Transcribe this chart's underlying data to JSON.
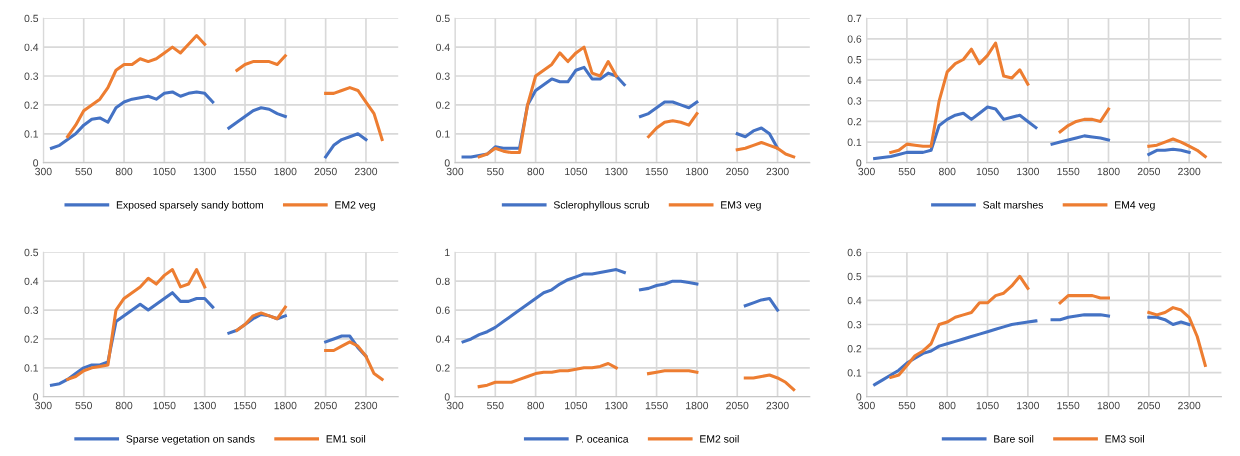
{
  "chart_data": [
    {
      "type": "line",
      "x": [
        350,
        400,
        450,
        500,
        550,
        600,
        650,
        700,
        750,
        800,
        850,
        900,
        950,
        1000,
        1050,
        1100,
        1150,
        1200,
        1250,
        1300,
        1350,
        1400,
        1450,
        1500,
        1550,
        1600,
        1650,
        1700,
        1750,
        1800,
        1850,
        1900,
        1950,
        2000,
        2050,
        2100,
        2150,
        2200,
        2250,
        2300,
        2350,
        2400
      ],
      "xlim": [
        300,
        2500
      ],
      "xticks": [
        300,
        550,
        800,
        1050,
        1300,
        1550,
        1800,
        2050,
        2300
      ],
      "ylim": [
        0,
        0.5
      ],
      "yticks": [
        0,
        0.1,
        0.2,
        0.3,
        0.4,
        0.5
      ],
      "grid": true,
      "legend": "bottom",
      "series": [
        {
          "name": "Exposed sparsely sandy bottom",
          "color": "#4472c4",
          "values": [
            0.05,
            0.06,
            0.08,
            0.1,
            0.13,
            0.15,
            0.155,
            0.14,
            0.19,
            0.21,
            0.22,
            0.225,
            0.23,
            0.22,
            0.24,
            0.245,
            0.23,
            0.24,
            0.245,
            0.24,
            0.21,
            null,
            0.12,
            0.14,
            0.16,
            0.18,
            0.19,
            0.185,
            0.17,
            0.16,
            null,
            null,
            null,
            null,
            0.02,
            0.06,
            0.08,
            0.09,
            0.1,
            0.08,
            null,
            null
          ]
        },
        {
          "name": "EM2 veg",
          "color": "#ed7d31",
          "values": [
            null,
            null,
            0.09,
            0.13,
            0.18,
            0.2,
            0.22,
            0.26,
            0.32,
            0.34,
            0.34,
            0.36,
            0.35,
            0.36,
            0.38,
            0.4,
            0.38,
            0.41,
            0.44,
            0.41,
            null,
            null,
            null,
            0.32,
            0.34,
            0.35,
            0.35,
            0.35,
            0.34,
            0.37,
            null,
            null,
            null,
            null,
            0.24,
            0.24,
            0.25,
            0.26,
            0.25,
            0.21,
            0.17,
            0.08
          ]
        }
      ]
    },
    {
      "type": "line",
      "x": [
        350,
        400,
        450,
        500,
        550,
        600,
        650,
        700,
        750,
        800,
        850,
        900,
        950,
        1000,
        1050,
        1100,
        1150,
        1200,
        1250,
        1300,
        1350,
        1400,
        1450,
        1500,
        1550,
        1600,
        1650,
        1700,
        1750,
        1800,
        1850,
        1900,
        1950,
        2000,
        2050,
        2100,
        2150,
        2200,
        2250,
        2300,
        2350,
        2400
      ],
      "xlim": [
        300,
        2500
      ],
      "xticks": [
        300,
        550,
        800,
        1050,
        1300,
        1550,
        1800,
        2050,
        2300
      ],
      "ylim": [
        0,
        0.5
      ],
      "yticks": [
        0,
        0.1,
        0.2,
        0.3,
        0.4,
        0.5
      ],
      "grid": true,
      "legend": "bottom",
      "series": [
        {
          "name": "Sclerophyllous scrub",
          "color": "#4472c4",
          "values": [
            0.02,
            0.02,
            0.025,
            0.03,
            0.055,
            0.05,
            0.05,
            0.05,
            0.2,
            0.25,
            0.27,
            0.29,
            0.28,
            0.28,
            0.32,
            0.33,
            0.29,
            0.29,
            0.31,
            0.3,
            0.27,
            null,
            0.16,
            0.17,
            0.19,
            0.21,
            0.21,
            0.2,
            0.19,
            0.21,
            null,
            null,
            null,
            null,
            0.1,
            0.09,
            0.11,
            0.12,
            0.1,
            0.05,
            null,
            null
          ]
        },
        {
          "name": "EM3 veg",
          "color": "#ed7d31",
          "values": [
            null,
            null,
            0.02,
            0.03,
            0.05,
            0.04,
            0.035,
            0.035,
            0.2,
            0.3,
            0.32,
            0.34,
            0.38,
            0.35,
            0.38,
            0.4,
            0.31,
            0.3,
            0.35,
            0.3,
            null,
            null,
            null,
            0.09,
            0.12,
            0.14,
            0.145,
            0.14,
            0.13,
            0.17,
            null,
            null,
            null,
            null,
            0.045,
            0.05,
            0.06,
            0.07,
            0.06,
            0.05,
            0.03,
            0.02
          ]
        }
      ]
    },
    {
      "type": "line",
      "x": [
        350,
        400,
        450,
        500,
        550,
        600,
        650,
        700,
        750,
        800,
        850,
        900,
        950,
        1000,
        1050,
        1100,
        1150,
        1200,
        1250,
        1300,
        1350,
        1400,
        1450,
        1500,
        1550,
        1600,
        1650,
        1700,
        1750,
        1800,
        1850,
        1900,
        1950,
        2000,
        2050,
        2100,
        2150,
        2200,
        2250,
        2300,
        2350,
        2400
      ],
      "xlim": [
        300,
        2500
      ],
      "xticks": [
        300,
        550,
        800,
        1050,
        1300,
        1550,
        1800,
        2050,
        2300
      ],
      "ylim": [
        0,
        0.7
      ],
      "yticks": [
        0,
        0.1,
        0.2,
        0.3,
        0.4,
        0.5,
        0.6,
        0.7
      ],
      "grid": true,
      "legend": "bottom",
      "series": [
        {
          "name": "Salt marshes",
          "color": "#4472c4",
          "values": [
            0.02,
            0.025,
            0.03,
            0.04,
            0.05,
            0.05,
            0.05,
            0.06,
            0.18,
            0.21,
            0.23,
            0.24,
            0.21,
            0.24,
            0.27,
            0.26,
            0.21,
            0.22,
            0.23,
            0.2,
            0.17,
            null,
            0.09,
            0.1,
            0.11,
            0.12,
            0.13,
            0.125,
            0.12,
            0.11,
            null,
            null,
            null,
            null,
            0.04,
            0.06,
            0.06,
            0.065,
            0.06,
            0.05,
            null,
            null
          ]
        },
        {
          "name": "EM4 veg",
          "color": "#ed7d31",
          "values": [
            null,
            null,
            0.05,
            0.06,
            0.09,
            0.085,
            0.08,
            0.08,
            0.3,
            0.44,
            0.48,
            0.5,
            0.55,
            0.48,
            0.52,
            0.58,
            0.42,
            0.41,
            0.45,
            0.38,
            null,
            null,
            null,
            0.15,
            0.18,
            0.2,
            0.21,
            0.21,
            0.2,
            0.26,
            null,
            null,
            null,
            null,
            0.08,
            0.085,
            0.1,
            0.115,
            0.1,
            0.08,
            0.06,
            0.03
          ]
        }
      ]
    },
    {
      "type": "line",
      "x": [
        350,
        400,
        450,
        500,
        550,
        600,
        650,
        700,
        750,
        800,
        850,
        900,
        950,
        1000,
        1050,
        1100,
        1150,
        1200,
        1250,
        1300,
        1350,
        1400,
        1450,
        1500,
        1550,
        1600,
        1650,
        1700,
        1750,
        1800,
        1850,
        1900,
        1950,
        2000,
        2050,
        2100,
        2150,
        2200,
        2250,
        2300,
        2350,
        2400
      ],
      "xlim": [
        300,
        2500
      ],
      "xticks": [
        300,
        550,
        800,
        1050,
        1300,
        1550,
        1800,
        2050,
        2300
      ],
      "ylim": [
        0,
        0.5
      ],
      "yticks": [
        0,
        0.1,
        0.2,
        0.3,
        0.4,
        0.5
      ],
      "grid": true,
      "legend": "bottom",
      "series": [
        {
          "name": "Sparse vegetation on sands",
          "color": "#4472c4",
          "values": [
            0.04,
            0.045,
            0.06,
            0.08,
            0.1,
            0.11,
            0.11,
            0.12,
            0.26,
            0.28,
            0.3,
            0.32,
            0.3,
            0.32,
            0.34,
            0.36,
            0.33,
            0.33,
            0.34,
            0.34,
            0.31,
            null,
            0.22,
            0.23,
            0.25,
            0.27,
            0.285,
            0.28,
            0.27,
            0.28,
            null,
            null,
            null,
            null,
            0.19,
            0.2,
            0.21,
            0.21,
            0.17,
            0.14,
            null,
            null
          ]
        },
        {
          "name": "EM1 soil",
          "color": "#ed7d31",
          "values": [
            null,
            null,
            0.06,
            0.07,
            0.09,
            0.1,
            0.105,
            0.11,
            0.3,
            0.34,
            0.36,
            0.38,
            0.41,
            0.39,
            0.42,
            0.44,
            0.38,
            0.39,
            0.44,
            0.38,
            null,
            null,
            null,
            0.23,
            0.25,
            0.28,
            0.29,
            0.28,
            0.27,
            0.31,
            null,
            null,
            null,
            null,
            0.16,
            0.16,
            0.175,
            0.19,
            0.175,
            0.14,
            0.08,
            0.06
          ]
        }
      ]
    },
    {
      "type": "line",
      "x": [
        350,
        400,
        450,
        500,
        550,
        600,
        650,
        700,
        750,
        800,
        850,
        900,
        950,
        1000,
        1050,
        1100,
        1150,
        1200,
        1250,
        1300,
        1350,
        1400,
        1450,
        1500,
        1550,
        1600,
        1650,
        1700,
        1750,
        1800,
        1850,
        1900,
        1950,
        2000,
        2050,
        2100,
        2150,
        2200,
        2250,
        2300,
        2350,
        2400
      ],
      "xlim": [
        300,
        2500
      ],
      "xticks": [
        300,
        550,
        800,
        1050,
        1300,
        1550,
        1800,
        2050,
        2300
      ],
      "ylim": [
        0,
        1
      ],
      "yticks": [
        0,
        0.2,
        0.4,
        0.6,
        0.8,
        1
      ],
      "grid": true,
      "legend": "bottom",
      "series": [
        {
          "name": "P. oceanica",
          "color": "#4472c4",
          "values": [
            0.38,
            0.4,
            0.43,
            0.45,
            0.48,
            0.52,
            0.56,
            0.6,
            0.64,
            0.68,
            0.72,
            0.74,
            0.78,
            0.81,
            0.83,
            0.85,
            0.85,
            0.86,
            0.87,
            0.88,
            0.86,
            null,
            0.74,
            0.75,
            0.77,
            0.78,
            0.8,
            0.8,
            0.79,
            0.78,
            null,
            null,
            null,
            null,
            null,
            0.63,
            0.65,
            0.67,
            0.68,
            0.6,
            null,
            null
          ]
        },
        {
          "name": "EM2 soil",
          "color": "#ed7d31",
          "values": [
            null,
            null,
            0.07,
            0.08,
            0.1,
            0.1,
            0.1,
            0.12,
            0.14,
            0.16,
            0.17,
            0.17,
            0.18,
            0.18,
            0.19,
            0.2,
            0.2,
            0.21,
            0.23,
            0.2,
            null,
            null,
            null,
            0.16,
            0.17,
            0.18,
            0.18,
            0.18,
            0.18,
            0.17,
            null,
            null,
            null,
            null,
            null,
            0.13,
            0.13,
            0.14,
            0.15,
            0.13,
            0.1,
            0.05
          ]
        }
      ]
    },
    {
      "type": "line",
      "x": [
        350,
        400,
        450,
        500,
        550,
        600,
        650,
        700,
        750,
        800,
        850,
        900,
        950,
        1000,
        1050,
        1100,
        1150,
        1200,
        1250,
        1300,
        1350,
        1400,
        1450,
        1500,
        1550,
        1600,
        1650,
        1700,
        1750,
        1800,
        1850,
        1900,
        1950,
        2000,
        2050,
        2100,
        2150,
        2200,
        2250,
        2300,
        2350,
        2400
      ],
      "xlim": [
        300,
        2500
      ],
      "xticks": [
        300,
        550,
        800,
        1050,
        1300,
        1550,
        1800,
        2050,
        2300
      ],
      "ylim": [
        0,
        0.6
      ],
      "yticks": [
        0,
        0.1,
        0.2,
        0.3,
        0.4,
        0.5,
        0.6
      ],
      "grid": true,
      "legend": "bottom",
      "series": [
        {
          "name": "Bare soil",
          "color": "#4472c4",
          "values": [
            0.05,
            0.07,
            0.09,
            0.11,
            0.14,
            0.16,
            0.18,
            0.19,
            0.21,
            0.22,
            0.23,
            0.24,
            0.25,
            0.26,
            0.27,
            0.28,
            0.29,
            0.3,
            0.305,
            0.31,
            0.315,
            null,
            0.32,
            0.32,
            0.33,
            0.335,
            0.34,
            0.34,
            0.34,
            0.335,
            null,
            null,
            null,
            null,
            0.33,
            0.33,
            0.32,
            0.3,
            0.31,
            0.3,
            null,
            null
          ]
        },
        {
          "name": "EM3 soil",
          "color": "#ed7d31",
          "values": [
            null,
            null,
            0.08,
            0.09,
            0.13,
            0.17,
            0.19,
            0.22,
            0.3,
            0.31,
            0.33,
            0.34,
            0.35,
            0.39,
            0.39,
            0.42,
            0.43,
            0.46,
            0.5,
            0.45,
            null,
            null,
            null,
            0.39,
            0.42,
            0.42,
            0.42,
            0.42,
            0.41,
            0.41,
            null,
            null,
            null,
            null,
            0.35,
            0.34,
            0.35,
            0.37,
            0.36,
            0.33,
            0.25,
            0.13
          ]
        }
      ]
    }
  ]
}
